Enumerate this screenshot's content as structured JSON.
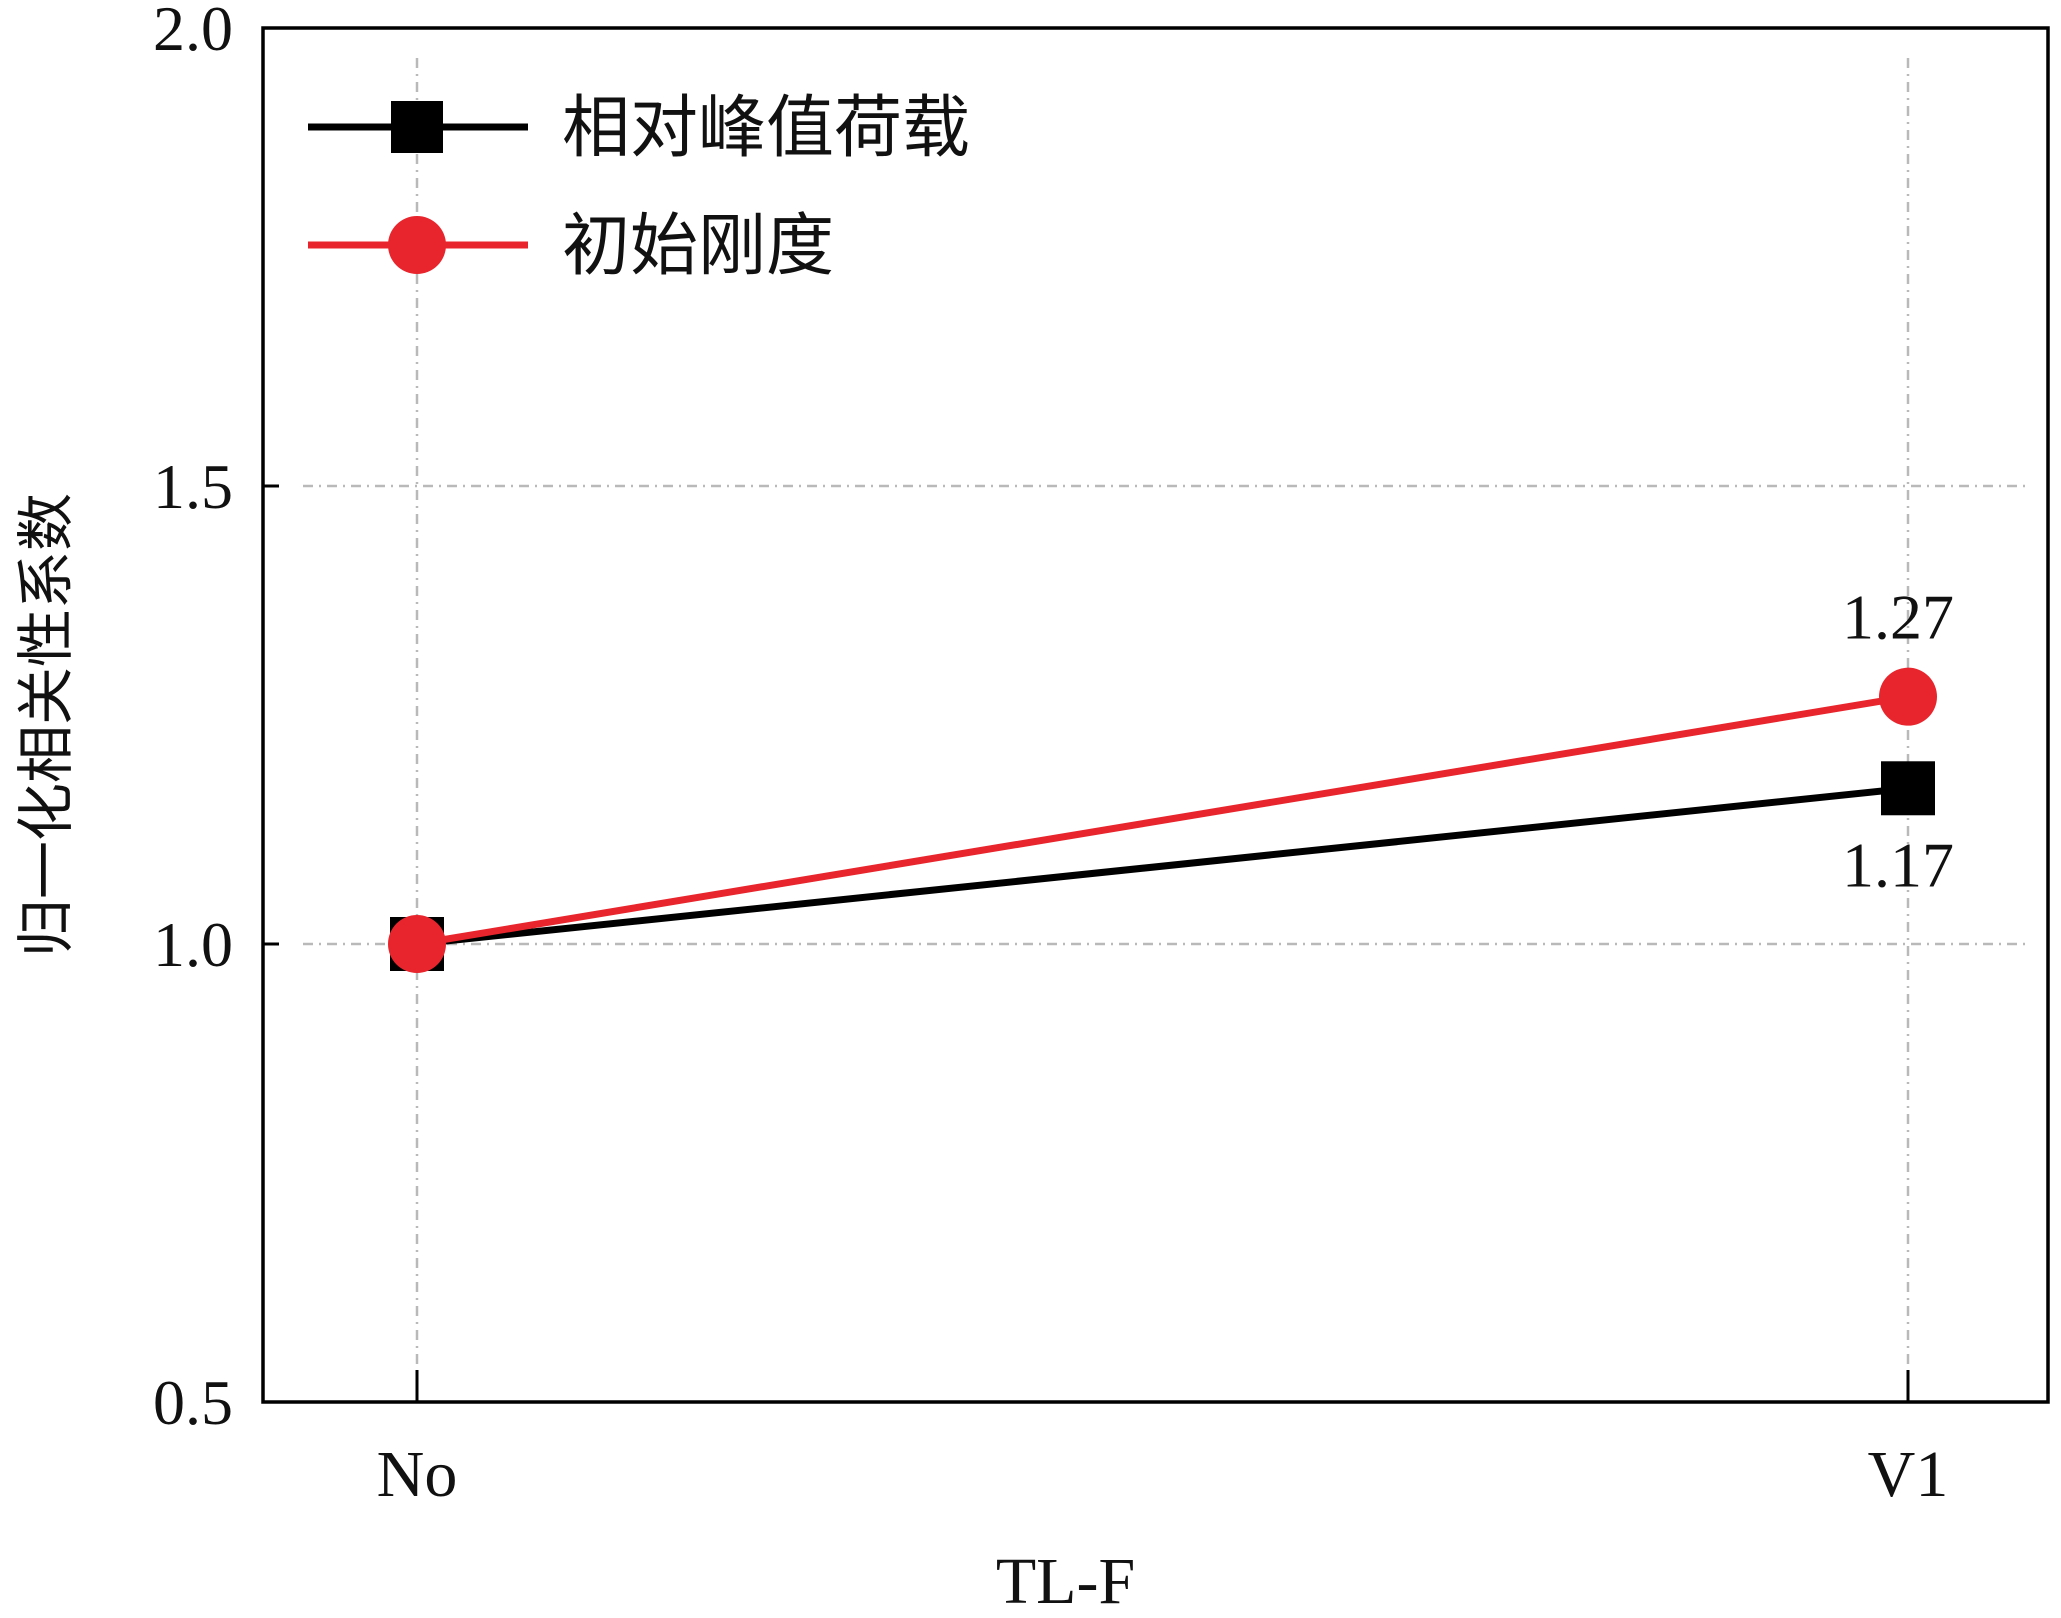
{
  "chart_data": {
    "type": "line",
    "categories": [
      "No",
      "V1"
    ],
    "series": [
      {
        "name": "相对峰值荷载",
        "values": [
          1.0,
          1.17
        ],
        "color": "#000000",
        "marker": "square",
        "labels": [
          "",
          "1.17"
        ]
      },
      {
        "name": "初始刚度",
        "values": [
          1.0,
          1.27
        ],
        "color": "#e8252c",
        "marker": "circle",
        "labels": [
          "",
          "1.27"
        ]
      }
    ],
    "xlabel": "TL-F",
    "ylabel": "归一化相关性系数",
    "ylim": [
      0.5,
      2.0
    ],
    "yticks": [
      "0.5",
      "1.0",
      "1.5",
      "2.0"
    ],
    "grid": true,
    "legend_position": "top-left"
  }
}
